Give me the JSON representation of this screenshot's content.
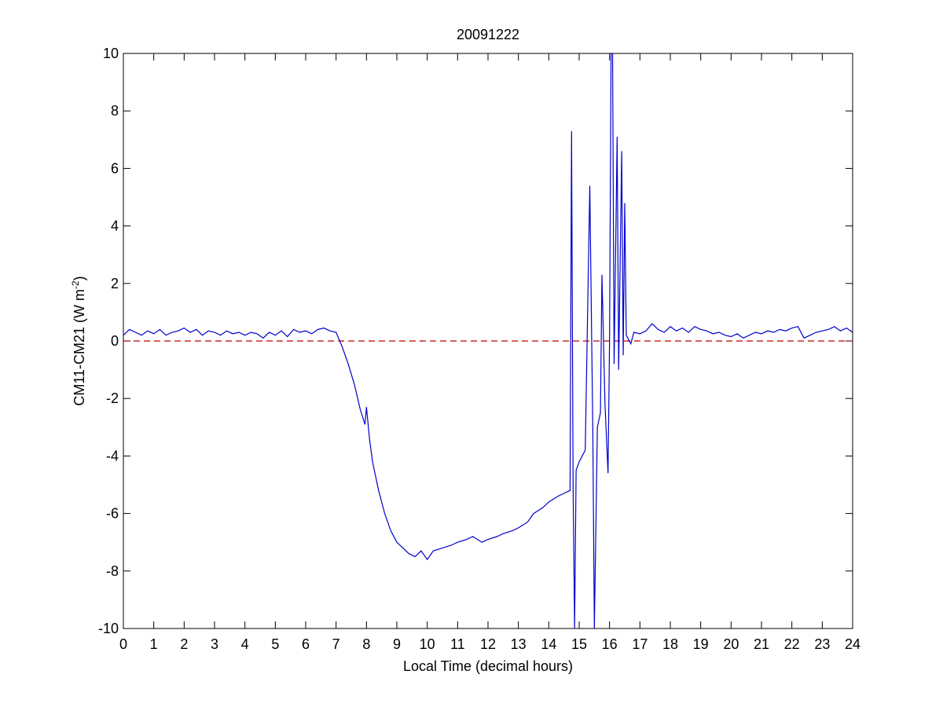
{
  "chart_data": {
    "type": "line",
    "title": "20091222",
    "x_label": "Local Time (decimal hours)",
    "y_label": {
      "text": "CM11-CM21 (W m",
      "superscript": "-2",
      "suffix": ")"
    },
    "xlim": [
      0,
      24
    ],
    "xticks": [
      0,
      1,
      2,
      3,
      4,
      5,
      6,
      7,
      8,
      9,
      10,
      11,
      12,
      13,
      14,
      15,
      16,
      17,
      18,
      19,
      20,
      21,
      22,
      23,
      24
    ],
    "ylim": [
      -10,
      10
    ],
    "yticks": [
      -10,
      -8,
      -6,
      -4,
      -2,
      0,
      2,
      4,
      6,
      8,
      10
    ],
    "reference_line": {
      "y": 0,
      "color": "#c00000"
    },
    "series": [
      {
        "color": "#0000cc",
        "x": [
          0,
          0.2,
          0.4,
          0.6,
          0.8,
          1.0,
          1.2,
          1.4,
          1.6,
          1.8,
          2.0,
          2.2,
          2.4,
          2.6,
          2.8,
          3.0,
          3.2,
          3.4,
          3.6,
          3.8,
          4.0,
          4.2,
          4.4,
          4.6,
          4.8,
          5.0,
          5.2,
          5.4,
          5.6,
          5.8,
          6.0,
          6.2,
          6.4,
          6.6,
          6.8,
          7.0,
          7.2,
          7.4,
          7.6,
          7.8,
          7.95,
          8.0,
          8.1,
          8.2,
          8.4,
          8.6,
          8.8,
          9.0,
          9.2,
          9.4,
          9.6,
          9.8,
          10.0,
          10.2,
          10.5,
          10.8,
          11.0,
          11.3,
          11.5,
          11.8,
          12.0,
          12.3,
          12.5,
          12.8,
          13.0,
          13.3,
          13.5,
          13.8,
          14.0,
          14.3,
          14.5,
          14.7,
          14.75,
          14.8,
          14.85,
          14.9,
          15.0,
          15.2,
          15.35,
          15.45,
          15.5,
          15.55,
          15.6,
          15.7,
          15.75,
          15.85,
          15.95,
          16.0,
          16.05,
          16.1,
          16.15,
          16.25,
          16.3,
          16.4,
          16.45,
          16.5,
          16.55,
          16.7,
          16.8,
          17.0,
          17.2,
          17.4,
          17.6,
          17.8,
          18.0,
          18.2,
          18.4,
          18.6,
          18.8,
          19.0,
          19.2,
          19.4,
          19.6,
          19.8,
          20.0,
          20.2,
          20.4,
          20.6,
          20.8,
          21.0,
          21.2,
          21.4,
          21.6,
          21.8,
          22.0,
          22.2,
          22.4,
          22.6,
          22.8,
          23.0,
          23.2,
          23.4,
          23.6,
          23.8,
          24.0
        ],
        "values": [
          0.2,
          0.4,
          0.3,
          0.2,
          0.35,
          0.25,
          0.4,
          0.2,
          0.3,
          0.35,
          0.45,
          0.3,
          0.4,
          0.2,
          0.35,
          0.3,
          0.2,
          0.35,
          0.25,
          0.3,
          0.2,
          0.3,
          0.25,
          0.1,
          0.3,
          0.2,
          0.35,
          0.15,
          0.4,
          0.3,
          0.35,
          0.25,
          0.4,
          0.45,
          0.35,
          0.3,
          -0.2,
          -0.8,
          -1.5,
          -2.4,
          -2.9,
          -2.3,
          -3.4,
          -4.2,
          -5.2,
          -6.0,
          -6.6,
          -7.0,
          -7.2,
          -7.4,
          -7.5,
          -7.3,
          -7.6,
          -7.3,
          -7.2,
          -7.1,
          -7.0,
          -6.9,
          -6.8,
          -7.0,
          -6.9,
          -6.8,
          -6.7,
          -6.6,
          -6.5,
          -6.3,
          -6.0,
          -5.8,
          -5.6,
          -5.4,
          -5.3,
          -5.2,
          7.3,
          -5.0,
          -10,
          -4.5,
          -4.2,
          -3.8,
          5.4,
          -3.2,
          -10,
          -6.5,
          -3.0,
          -2.5,
          2.3,
          -2.2,
          -4.6,
          0,
          10,
          10,
          -0.8,
          7.1,
          -1,
          6.6,
          -0.5,
          4.8,
          0.2,
          -0.1,
          0.3,
          0.25,
          0.35,
          0.6,
          0.4,
          0.3,
          0.5,
          0.35,
          0.45,
          0.3,
          0.5,
          0.4,
          0.35,
          0.25,
          0.3,
          0.2,
          0.15,
          0.25,
          0.1,
          0.2,
          0.3,
          0.25,
          0.35,
          0.3,
          0.4,
          0.35,
          0.45,
          0.5,
          0.1,
          0.2,
          0.3,
          0.35,
          0.4,
          0.5,
          0.35,
          0.45,
          0.3
        ]
      }
    ]
  }
}
